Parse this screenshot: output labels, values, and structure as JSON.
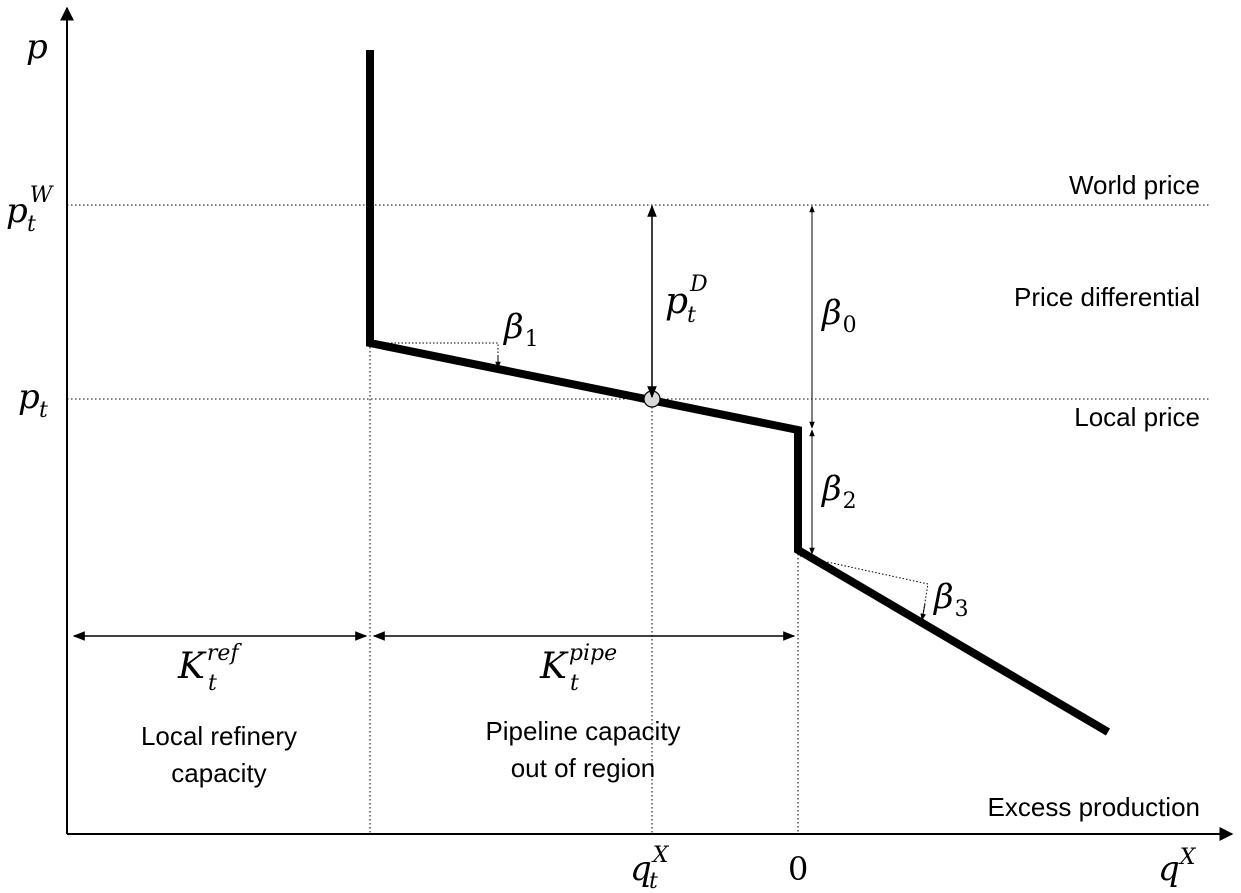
{
  "axes": {
    "y_label": "p",
    "x_label": "q",
    "x_label_sup": "X"
  },
  "price_levels": {
    "world_price_symbol": "p",
    "world_price_sub": "t",
    "world_price_sup": "W",
    "local_price_symbol": "p",
    "local_price_sub": "t"
  },
  "x_ticks": {
    "qtx_symbol": "q",
    "qtx_sub": "t",
    "qtx_sup": "X",
    "zero": "0"
  },
  "text_labels": {
    "world_price": "World price",
    "price_differential": "Price differential",
    "local_price": "Local price",
    "excess_production": "Excess production",
    "local_refinery_line1": "Local refinery",
    "local_refinery_line2": "capacity",
    "pipeline_line1": "Pipeline capacity",
    "pipeline_line2": "out of region"
  },
  "capacities": {
    "k_ref_symbol": "K",
    "k_ref_sub": "t",
    "k_ref_sup": "ref",
    "k_pipe_symbol": "K",
    "k_pipe_sub": "t",
    "k_pipe_sup": "pipe"
  },
  "differential": {
    "symbol": "p",
    "sub": "t",
    "sup": "D"
  },
  "betas": {
    "b0_symbol": "β",
    "b0_sub": "0",
    "b1_symbol": "β",
    "b1_sub": "1",
    "b2_symbol": "β",
    "b2_sub": "2",
    "b3_symbol": "β",
    "b3_sub": "3"
  }
}
